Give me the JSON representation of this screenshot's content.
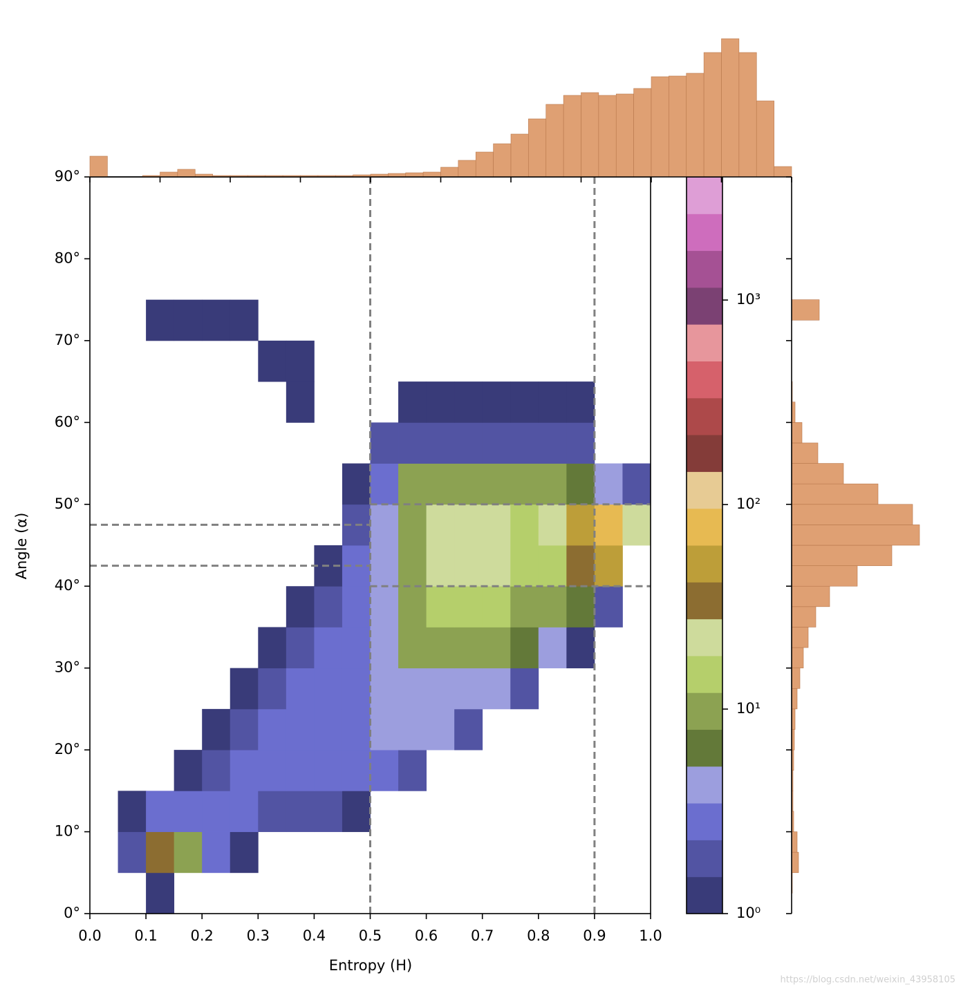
{
  "chart_data": [
    {
      "type": "hist2d",
      "xlabel": "Entropy (H)",
      "ylabel": "Angle (α)",
      "x_bins": [
        0,
        0.05,
        0.1,
        0.15,
        0.2,
        0.25,
        0.3,
        0.35,
        0.4,
        0.45,
        0.5,
        0.55,
        0.6,
        0.65,
        0.7,
        0.75,
        0.8,
        0.85,
        0.9,
        0.95,
        1
      ],
      "y_bins": [
        0,
        5,
        10,
        15,
        20,
        25,
        30,
        35,
        40,
        45,
        50,
        55,
        60,
        65,
        70,
        75,
        80,
        85,
        90
      ],
      "counts": [
        [
          0,
          0,
          1,
          0,
          0,
          0,
          0,
          0,
          0,
          0,
          0,
          0,
          0,
          0,
          0,
          0,
          0,
          0,
          0,
          0
        ],
        [
          0,
          2,
          30,
          10,
          3,
          1,
          0,
          0,
          0,
          0,
          0,
          0,
          0,
          0,
          0,
          0,
          0,
          0,
          0,
          0
        ],
        [
          0,
          1,
          3,
          3,
          3,
          3,
          2,
          2,
          2,
          1,
          0,
          0,
          0,
          0,
          0,
          0,
          0,
          0,
          0,
          0
        ],
        [
          0,
          0,
          0,
          1,
          2,
          3,
          3,
          3,
          3,
          3,
          3,
          2,
          0,
          0,
          0,
          0,
          0,
          0,
          0,
          0
        ],
        [
          0,
          0,
          0,
          0,
          1,
          2,
          3,
          3,
          3,
          3,
          4,
          4,
          4,
          2,
          0,
          0,
          0,
          0,
          0,
          0
        ],
        [
          0,
          0,
          0,
          0,
          0,
          1,
          2,
          3,
          3,
          3,
          4,
          5,
          5,
          5,
          4,
          2,
          0,
          0,
          0,
          0
        ],
        [
          0,
          0,
          0,
          0,
          0,
          0,
          1,
          2,
          3,
          3,
          5,
          8,
          10,
          10,
          8,
          6,
          4,
          1,
          0,
          0
        ],
        [
          0,
          0,
          0,
          0,
          0,
          0,
          0,
          1,
          2,
          3,
          5,
          10,
          15,
          18,
          15,
          12,
          10,
          6,
          2,
          0
        ],
        [
          0,
          0,
          0,
          0,
          0,
          0,
          0,
          0,
          1,
          3,
          4,
          12,
          20,
          22,
          20,
          18,
          18,
          40,
          60,
          0
        ],
        [
          0,
          0,
          0,
          0,
          0,
          0,
          0,
          0,
          0,
          2,
          4,
          12,
          20,
          22,
          20,
          18,
          20,
          50,
          80,
          20
        ],
        [
          0,
          0,
          0,
          0,
          0,
          0,
          0,
          0,
          0,
          1,
          3,
          10,
          12,
          12,
          10,
          8,
          8,
          6,
          5,
          2
        ],
        [
          0,
          0,
          0,
          0,
          0,
          0,
          0,
          0,
          0,
          0,
          2,
          2,
          2,
          2,
          2,
          2,
          2,
          2,
          0,
          0
        ],
        [
          0,
          0,
          0,
          0,
          0,
          0,
          0,
          1,
          0,
          0,
          0,
          1,
          1,
          1,
          1,
          1,
          1,
          1,
          0,
          0
        ],
        [
          0,
          0,
          0,
          0,
          0,
          0,
          1,
          1,
          0,
          0,
          0,
          0,
          0,
          0,
          0,
          0,
          0,
          0,
          0,
          0
        ],
        [
          0,
          0,
          1,
          1,
          1,
          1,
          0,
          0,
          0,
          0,
          0,
          0,
          0,
          0,
          0,
          0,
          0,
          0,
          0,
          0
        ],
        [
          0,
          0,
          0,
          0,
          0,
          0,
          0,
          0,
          0,
          0,
          0,
          0,
          0,
          0,
          0,
          0,
          0,
          0,
          0,
          0
        ],
        [
          0,
          0,
          0,
          0,
          0,
          0,
          0,
          0,
          0,
          0,
          0,
          0,
          0,
          0,
          0,
          0,
          0,
          0,
          0,
          0
        ],
        [
          0,
          0,
          0,
          0,
          0,
          0,
          0,
          0,
          0,
          0,
          0,
          0,
          0,
          0,
          0,
          0,
          0,
          0,
          0,
          0
        ]
      ],
      "xlim": [
        0,
        1
      ],
      "ylim": [
        0,
        90
      ],
      "xticks": [
        {
          "value": 0,
          "label": "0.0"
        },
        0.1,
        0.2,
        0.3,
        0.4,
        0.5,
        0.6,
        0.7,
        0.8,
        0.9,
        {
          "value": 1,
          "label": "1.0"
        }
      ],
      "yticks": [
        {
          "value": 0,
          "label": "0°"
        },
        {
          "value": 10,
          "label": "10°"
        },
        {
          "value": 20,
          "label": "20°"
        },
        {
          "value": 30,
          "label": "30°"
        },
        {
          "value": 40,
          "label": "40°"
        },
        {
          "value": 50,
          "label": "50°"
        },
        {
          "value": 60,
          "label": "60°"
        },
        {
          "value": 70,
          "label": "70°"
        },
        {
          "value": 80,
          "label": "80°"
        },
        {
          "value": 90,
          "label": "90°"
        }
      ],
      "log_color": true,
      "clim": [
        1,
        4000
      ],
      "colormap": [
        "#393b79",
        "#5254a3",
        "#6b6ecf",
        "#9c9ede",
        "#637939",
        "#8ca252",
        "#b5cf6b",
        "#cedb9c",
        "#8c6d31",
        "#bd9e39",
        "#e7ba52",
        "#e7cb94",
        "#843c39",
        "#ad494a",
        "#d6616b",
        "#e7969c",
        "#7b4173",
        "#a55194",
        "#ce6dbd",
        "#de9ed6"
      ],
      "colorbar_ticks": [
        {
          "value": 1,
          "label": "10⁰"
        },
        {
          "value": 10,
          "label": "10¹"
        },
        {
          "value": 100,
          "label": "10²"
        },
        {
          "value": 1000,
          "label": "10³"
        }
      ],
      "reference_lines": {
        "color": "#808080",
        "vertical": [
          0.5,
          0.9
        ],
        "horizontal": [
          {
            "y": 47.5,
            "x": [
              0,
              0.5
            ]
          },
          {
            "y": 42.5,
            "x": [
              0,
              0.5
            ]
          },
          {
            "y": 50,
            "x": [
              0.5,
              1
            ]
          },
          {
            "y": 40,
            "x": [
              0.5,
              1
            ]
          }
        ]
      }
    },
    {
      "type": "histogram",
      "orientation": "vertical",
      "color": "#dfa073",
      "edgecolor": "#b8774c",
      "bins": [
        0,
        0.025,
        0.05,
        0.075,
        0.1,
        0.125,
        0.15,
        0.175,
        0.2,
        0.225,
        0.25,
        0.275,
        0.3,
        0.325,
        0.35,
        0.375,
        0.4,
        0.425,
        0.45,
        0.475,
        0.5,
        0.525,
        0.55,
        0.575,
        0.6,
        0.625,
        0.65,
        0.675,
        0.7,
        0.725,
        0.75,
        0.775,
        0.8,
        0.825,
        0.85,
        0.875,
        0.9,
        0.925,
        0.95,
        0.975,
        1
      ],
      "values": [
        30,
        0,
        0,
        2,
        7,
        11,
        4,
        2,
        2,
        2,
        2,
        2,
        2,
        2,
        2,
        3,
        4,
        5,
        6,
        7,
        14,
        24,
        36,
        48,
        62,
        84,
        105,
        118,
        122,
        118,
        120,
        128,
        145,
        146,
        150,
        180,
        200,
        180,
        110,
        15
      ],
      "xlim": [
        0,
        1
      ],
      "ylim": [
        0,
        210
      ],
      "xticks": [
        0,
        0.1,
        0.2,
        0.3,
        0.4,
        0.5,
        0.6,
        0.7,
        0.8,
        0.9,
        1
      ]
    },
    {
      "type": "histogram",
      "orientation": "horizontal",
      "color": "#dfa073",
      "edgecolor": "#b8774c",
      "bins": [
        0,
        2.5,
        5,
        7.5,
        10,
        12.5,
        15,
        17.5,
        20,
        22.5,
        25,
        27.5,
        30,
        32.5,
        35,
        37.5,
        40,
        42.5,
        45,
        47.5,
        50,
        52.5,
        55,
        57.5,
        60,
        62.5,
        65,
        67.5,
        70,
        72.5,
        75,
        77.5,
        80,
        82.5,
        85,
        87.5,
        90
      ],
      "values": [
        0,
        1,
        10,
        8,
        3,
        2,
        2,
        3,
        4,
        5,
        8,
        12,
        17,
        24,
        35,
        55,
        95,
        145,
        185,
        175,
        125,
        75,
        38,
        15,
        5,
        1,
        0,
        0,
        0,
        40,
        0,
        0,
        0,
        0,
        0,
        0
      ],
      "xlim": [
        0,
        210
      ],
      "ylim": [
        0,
        90
      ],
      "yticks": [
        0,
        10,
        20,
        30,
        40,
        50,
        60,
        70,
        80,
        90
      ]
    }
  ],
  "watermark": "https://blog.csdn.net/weixin_43958105"
}
